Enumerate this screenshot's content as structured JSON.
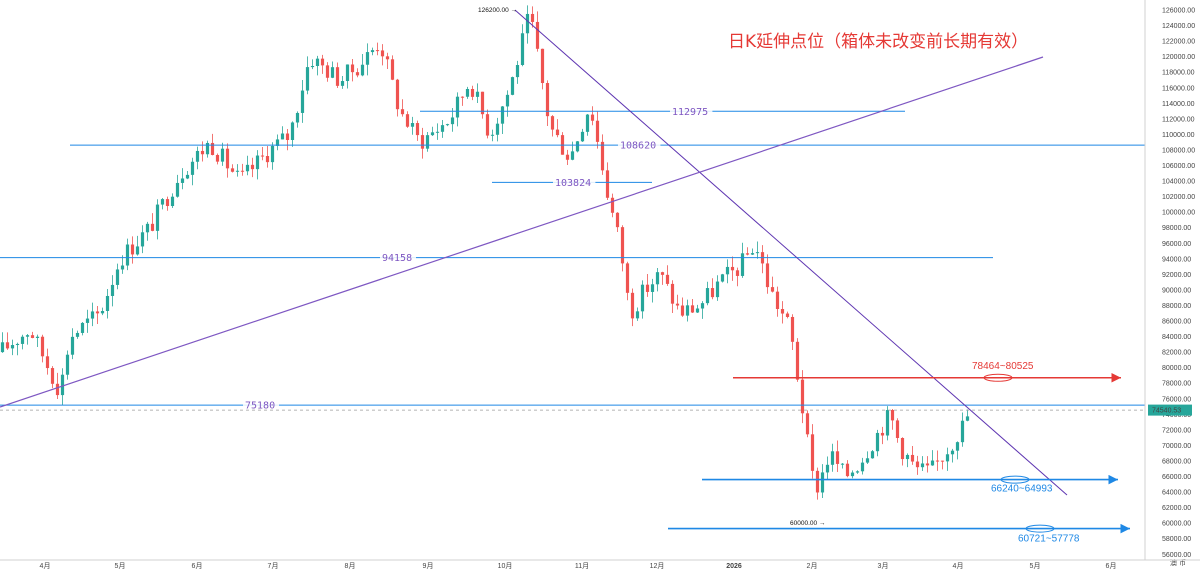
{
  "chart_data": {
    "type": "candlestick",
    "title": "日K延伸点位（箱体未改变前长期有效）",
    "y_ticks": [
      "126000.00",
      "124000.00",
      "122000.00",
      "120000.00",
      "118000.00",
      "116000.00",
      "114000.00",
      "112000.00",
      "110000.00",
      "108000.00",
      "106000.00",
      "104000.00",
      "102000.00",
      "100000.00",
      "98000.00",
      "96000.00",
      "94000.00",
      "92000.00",
      "90000.00",
      "88000.00",
      "86000.00",
      "84000.00",
      "82000.00",
      "80000.00",
      "78000.00",
      "76000.00",
      "74000.00",
      "72000.00",
      "70000.00",
      "68000.00",
      "66000.00",
      "64000.00",
      "62000.00",
      "60000.00",
      "58000.00",
      "56000.00"
    ],
    "ylim": [
      55200,
      126800
    ],
    "x_ticks": [
      "4月",
      "5月",
      "6月",
      "7月",
      "8月",
      "9月",
      "10月",
      "11月",
      "12月",
      "2026",
      "2月",
      "3月",
      "4月",
      "5月",
      "6月"
    ],
    "axis_corner_label": "澳 币",
    "last_price": "74540.53",
    "extremes": {
      "high_label": "126200.00",
      "low_label": "60000.00"
    },
    "levels": [
      {
        "label": "112975",
        "value": 112975
      },
      {
        "label": "108620",
        "value": 108620
      },
      {
        "label": "103824",
        "value": 103824
      },
      {
        "label": "94158",
        "value": 94158
      },
      {
        "label": "75180",
        "value": 75180
      }
    ],
    "zones": [
      {
        "label": "78464~80525",
        "value": 78700,
        "color": "#e53935"
      },
      {
        "label": "66240~64993",
        "value": 65600,
        "color": "#1e88e5"
      },
      {
        "label": "60721~57778",
        "value": 59300,
        "color": "#1e88e5"
      }
    ],
    "colors": {
      "up": "#26a69a",
      "down": "#ef5350",
      "level": "#2962ff",
      "level_text": "#7e57c2",
      "trend": "#5e35b1",
      "title": "#e53935",
      "last_price": "#26a69a"
    },
    "series": [
      {
        "name": "price_path",
        "points": [
          [
            0.0,
            82000
          ],
          [
            0.03,
            85000
          ],
          [
            0.06,
            77000
          ],
          [
            0.07,
            84000
          ],
          [
            0.1,
            87000
          ],
          [
            0.12,
            94000
          ],
          [
            0.15,
            98000
          ],
          [
            0.18,
            105000
          ],
          [
            0.21,
            109000
          ],
          [
            0.24,
            104000
          ],
          [
            0.27,
            108000
          ],
          [
            0.29,
            110000
          ],
          [
            0.31,
            120000
          ],
          [
            0.34,
            117000
          ],
          [
            0.36,
            119000
          ],
          [
            0.38,
            122000
          ],
          [
            0.4,
            113000
          ],
          [
            0.42,
            109000
          ],
          [
            0.45,
            112000
          ],
          [
            0.47,
            117000
          ],
          [
            0.49,
            110000
          ],
          [
            0.51,
            116000
          ],
          [
            0.53,
            125500
          ],
          [
            0.55,
            111000
          ],
          [
            0.57,
            107000
          ],
          [
            0.59,
            114000
          ],
          [
            0.61,
            101000
          ],
          [
            0.62,
            96000
          ],
          [
            0.63,
            87000
          ],
          [
            0.645,
            90000
          ],
          [
            0.66,
            92000
          ],
          [
            0.68,
            87000
          ],
          [
            0.7,
            88000
          ],
          [
            0.72,
            91000
          ],
          [
            0.74,
            93000
          ],
          [
            0.755,
            96000
          ],
          [
            0.77,
            90000
          ],
          [
            0.79,
            85000
          ],
          [
            0.8,
            77000
          ],
          [
            0.81,
            68000
          ],
          [
            0.815,
            64000
          ],
          [
            0.83,
            69000
          ],
          [
            0.845,
            66000
          ],
          [
            0.86,
            68000
          ],
          [
            0.875,
            71000
          ],
          [
            0.89,
            74000
          ],
          [
            0.9,
            70000
          ],
          [
            0.915,
            67000
          ],
          [
            0.93,
            66500
          ],
          [
            0.95,
            70000
          ],
          [
            0.965,
            73000
          ],
          [
            0.97,
            74540
          ]
        ]
      },
      {
        "name": "trend_down",
        "points": [
          [
            0.51,
            126000
          ],
          [
            0.97,
            63000
          ]
        ]
      },
      {
        "name": "trend_up",
        "points": [
          [
            0.0,
            75800
          ],
          [
            0.97,
            122800
          ]
        ]
      }
    ]
  }
}
